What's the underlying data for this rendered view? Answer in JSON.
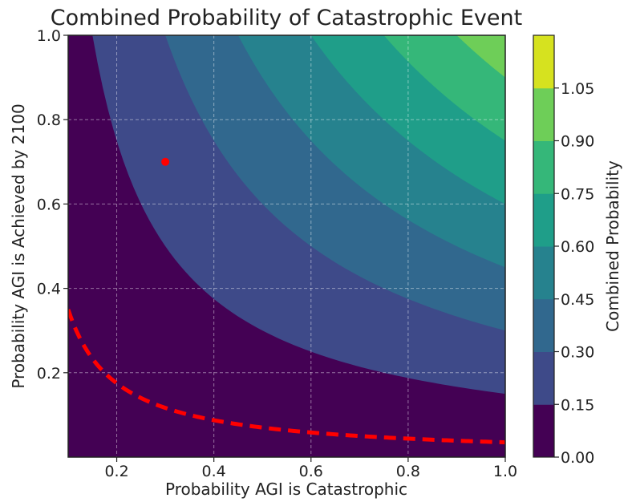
{
  "chart_data": {
    "type": "contour",
    "title": "Combined Probability of Catastrophic Event",
    "xlabel": "Probability AGI is Catastrophic",
    "ylabel": "Probability AGI is Achieved by 2100",
    "colorbar_label": "Combined Probability",
    "xlim": [
      0.1,
      1.0
    ],
    "ylim": [
      0.0,
      1.0
    ],
    "x_ticks": [
      0.2,
      0.4,
      0.6,
      0.8,
      1.0
    ],
    "x_tick_labels": [
      "0.2",
      "0.4",
      "0.6",
      "0.8",
      "1.0"
    ],
    "y_ticks": [
      0.2,
      0.4,
      0.6,
      0.8,
      1.0
    ],
    "y_tick_labels": [
      "0.2",
      "0.4",
      "0.6",
      "0.8",
      "1.0"
    ],
    "function": "x*y",
    "levels": [
      0.0,
      0.15,
      0.3,
      0.45,
      0.6,
      0.75,
      0.9,
      1.05
    ],
    "colorbar_tick_labels": [
      "0.00",
      "0.15",
      "0.30",
      "0.45",
      "0.60",
      "0.75",
      "0.90",
      "1.05"
    ],
    "level_colors": [
      "#440154",
      "#3e4a89",
      "#31688e",
      "#26828e",
      "#1f9e89",
      "#35b779",
      "#6ece58",
      "#d6e21f"
    ],
    "grid": true,
    "threshold_curve": {
      "product": 0.035,
      "color": "#ff0000",
      "style": "dashed"
    },
    "marked_point": {
      "x": 0.3,
      "y": 0.7,
      "color": "#ff0000"
    }
  }
}
